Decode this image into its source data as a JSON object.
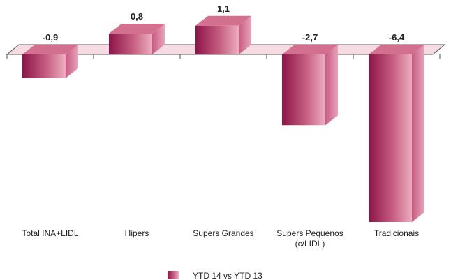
{
  "chart_data": {
    "type": "bar",
    "categories": [
      "Total INA+LIDL",
      "Hipers",
      "Supers Grandes",
      "Supers Pequenos (c/LIDL)",
      "Tradicionais"
    ],
    "category_lines": [
      [
        "Total INA+LIDL"
      ],
      [
        "Hipers"
      ],
      [
        "Supers Grandes"
      ],
      [
        "Supers Pequenos",
        "(c/LIDL)"
      ],
      [
        "Tradicionais"
      ]
    ],
    "series": [
      {
        "name": "YTD 14 vs YTD 13",
        "values": [
          -0.9,
          0.8,
          1.1,
          -2.7,
          -6.4
        ]
      }
    ],
    "value_labels": [
      "-0,9",
      "0,8",
      "1,1",
      "-2,7",
      "-6,4"
    ],
    "ylim": [
      -6.4,
      1.1
    ],
    "grid": false,
    "legend_position": "bottom-center",
    "colors": {
      "bar_dark": "#8c1448",
      "bar_light": "#ecaec0",
      "bar_top": "#d3708f",
      "bar_side": "#b54070",
      "baseline_fill": "#f7dbe3",
      "baseline_stroke": "#555555"
    }
  }
}
